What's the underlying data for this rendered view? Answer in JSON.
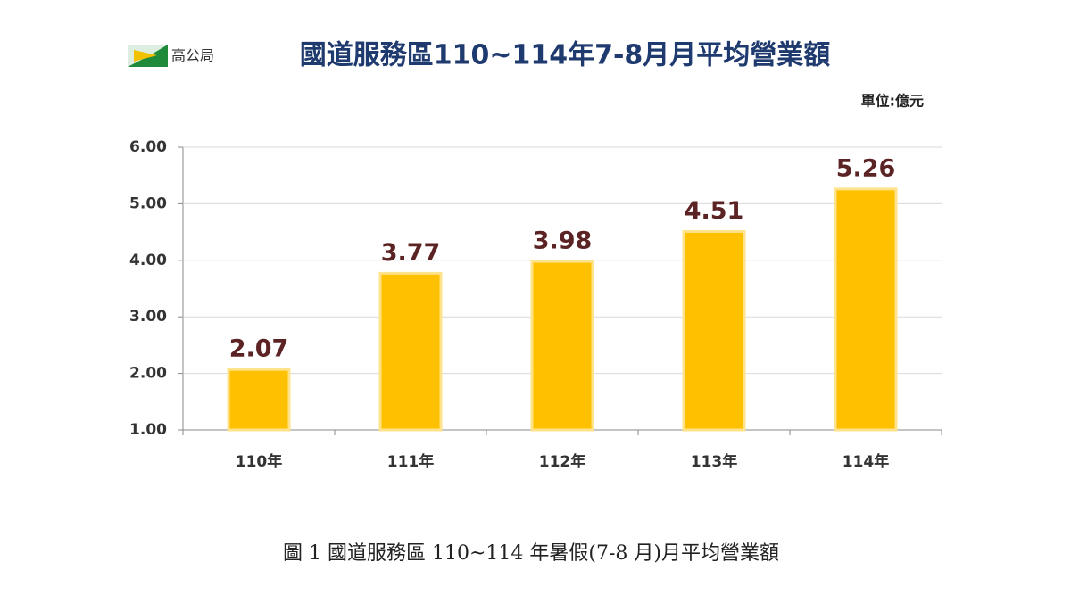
{
  "logo_text": "高公局",
  "caption": "圖 1 國道服務區 110~114 年暑假(7-8 月)月平均營業額",
  "chart_data": {
    "type": "bar",
    "title": "國道服務區110~114年7-8月月平均營業額",
    "unit_label": "單位:億元",
    "categories": [
      "110年",
      "111年",
      "112年",
      "113年",
      "114年"
    ],
    "values": [
      2.07,
      3.77,
      3.98,
      4.51,
      5.26
    ],
    "color": "#FFC000",
    "ylim": [
      1,
      6
    ],
    "yticks": [
      {
        "value": 1,
        "label": "1.00"
      },
      {
        "value": 2,
        "label": "2.00"
      },
      {
        "value": 3,
        "label": "3.00"
      },
      {
        "value": 4,
        "label": "4.00"
      },
      {
        "value": 5,
        "label": "5.00"
      },
      {
        "value": 6,
        "label": "6.00"
      }
    ],
    "grid": true
  }
}
